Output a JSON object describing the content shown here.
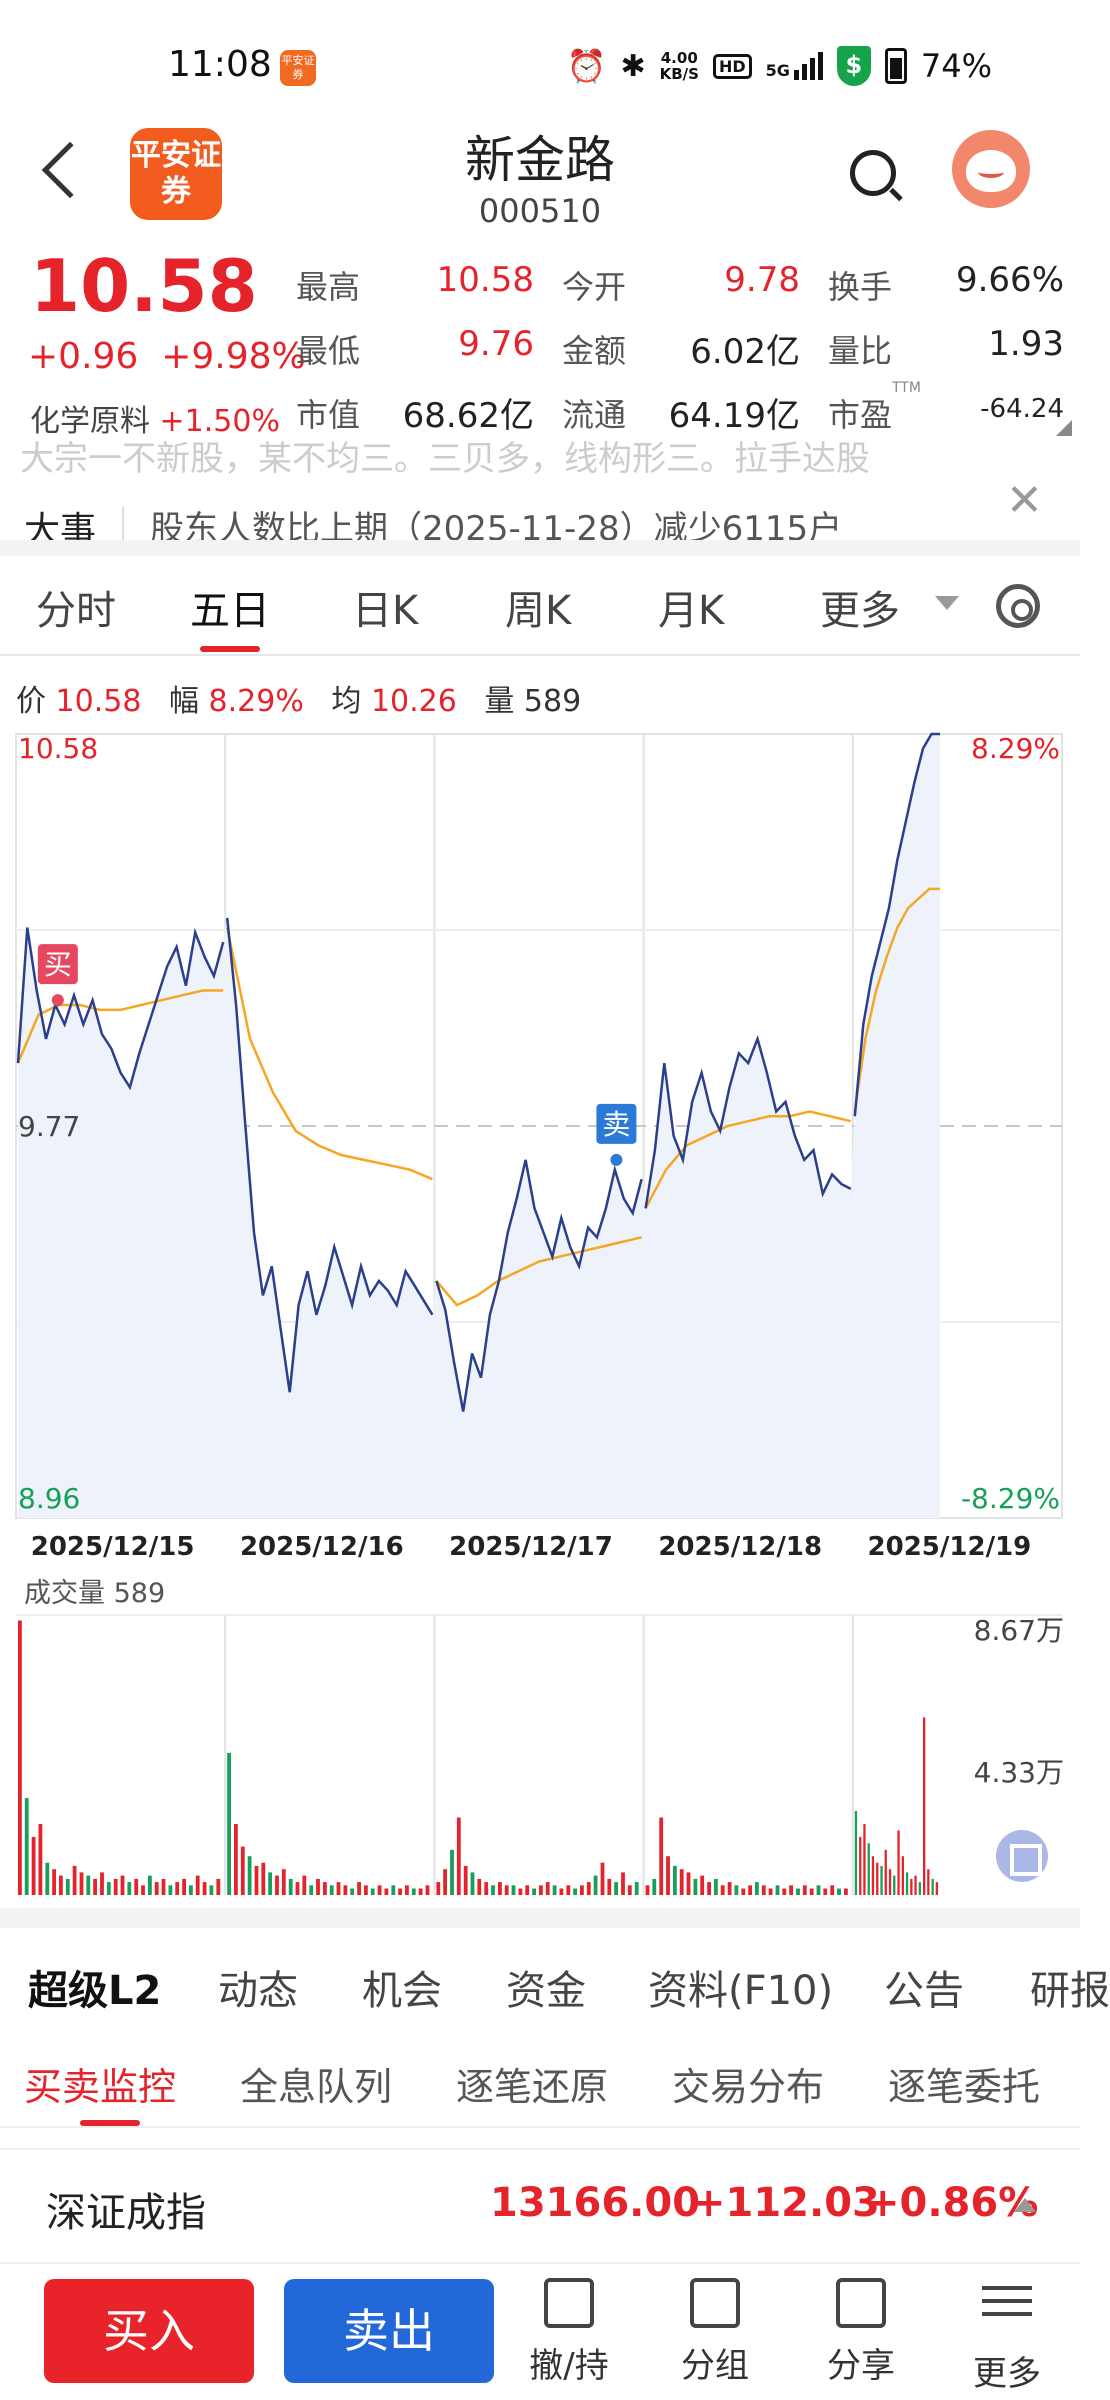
{
  "status_bar": {
    "time": "11:08",
    "app_badge": "平安证券",
    "net_speed_value": "4.00",
    "net_speed_unit": "KB/S",
    "hd": "HD",
    "network": "5G",
    "battery": "74%"
  },
  "header": {
    "logo_text": "平安证券",
    "stock_name": "新金路",
    "stock_code": "000510"
  },
  "quote": {
    "price": "10.58",
    "change": "+0.96",
    "change_pct": "+9.98%",
    "industry_name": "化学原料",
    "industry_pct": "+1.50%",
    "fields": [
      {
        "label": "最高",
        "value": "10.58",
        "color": "#e5232a"
      },
      {
        "label": "今开",
        "value": "9.78",
        "color": "#e5232a"
      },
      {
        "label": "换手",
        "value": "9.66%",
        "color": "#222222"
      },
      {
        "label": "最低",
        "value": "9.76",
        "color": "#e5232a"
      },
      {
        "label": "金额",
        "value": "6.02亿",
        "color": "#222222"
      },
      {
        "label": "量比",
        "value": "1.93",
        "color": "#222222"
      },
      {
        "label": "市值",
        "value": "68.62亿",
        "color": "#222222"
      },
      {
        "label": "流通",
        "value": "64.19亿",
        "color": "#222222"
      },
      {
        "label": "市盈",
        "value": "-64.24",
        "color": "#222222"
      }
    ],
    "pe_superscript": "TTM"
  },
  "news": {
    "faded_text": "大宗一不新股，某不均三。三贝多，线构形三。拉手达股",
    "tag": "大事",
    "text": "股东人数比上期（2025-11-28）减少6115户"
  },
  "period_tabs": [
    "分时",
    "五日",
    "日K",
    "周K",
    "月K",
    "更多"
  ],
  "active_period_tab": "五日",
  "info_bar": {
    "price_label": "价",
    "price": "10.58",
    "range_label": "幅",
    "range": "8.29%",
    "avg_label": "均",
    "avg": "10.26",
    "vol_label": "量",
    "vol": "589"
  },
  "chart_data": {
    "type": "line",
    "title": "",
    "y_top": "10.58",
    "y_mid": "9.77",
    "y_bottom": "8.96",
    "pct_top": "8.29%",
    "pct_bottom": "-8.29%",
    "ylim": [
      8.96,
      10.58
    ],
    "x": [
      "2025/12/15",
      "2025/12/16",
      "2025/12/17",
      "2025/12/18",
      "2025/12/19"
    ],
    "series": [
      {
        "name": "价",
        "color": "#2b3f8c",
        "days": [
          [
            9.9,
            10.18,
            10.05,
            9.95,
            10.02,
            9.98,
            10.04,
            9.98,
            10.03,
            9.96,
            9.93,
            9.88,
            9.85,
            9.92,
            9.98,
            10.04,
            10.1,
            10.14,
            10.06,
            10.17,
            10.12,
            10.08,
            10.15
          ],
          [
            10.2,
            10.02,
            9.78,
            9.55,
            9.42,
            9.48,
            9.35,
            9.22,
            9.4,
            9.47,
            9.38,
            9.44,
            9.52,
            9.46,
            9.4,
            9.48,
            9.42,
            9.45,
            9.43,
            9.4,
            9.47,
            9.44,
            9.41,
            9.38
          ],
          [
            9.45,
            9.39,
            9.28,
            9.18,
            9.3,
            9.25,
            9.38,
            9.45,
            9.55,
            9.62,
            9.7,
            9.6,
            9.55,
            9.5,
            9.58,
            9.52,
            9.48,
            9.56,
            9.54,
            9.6,
            9.68,
            9.62,
            9.59,
            9.66
          ],
          [
            9.6,
            9.72,
            9.9,
            9.75,
            9.7,
            9.82,
            9.88,
            9.8,
            9.76,
            9.85,
            9.92,
            9.9,
            9.95,
            9.88,
            9.8,
            9.82,
            9.75,
            9.7,
            9.72,
            9.63,
            9.67,
            9.65,
            9.64
          ],
          [
            9.79,
            9.98,
            10.08,
            10.15,
            10.22,
            10.32,
            10.4,
            10.48,
            10.55,
            10.58,
            10.58
          ]
        ]
      },
      {
        "name": "均",
        "color": "#f5a623",
        "days": [
          [
            9.9,
            10.0,
            10.02,
            10.02,
            10.01,
            10.01,
            10.02,
            10.03,
            10.04,
            10.05,
            10.05
          ],
          [
            10.18,
            9.95,
            9.84,
            9.76,
            9.73,
            9.71,
            9.7,
            9.69,
            9.68,
            9.66
          ],
          [
            9.45,
            9.4,
            9.42,
            9.45,
            9.47,
            9.49,
            9.5,
            9.51,
            9.52,
            9.53,
            9.54
          ],
          [
            9.6,
            9.68,
            9.73,
            9.75,
            9.77,
            9.78,
            9.79,
            9.79,
            9.8,
            9.79,
            9.78
          ],
          [
            9.8,
            9.95,
            10.05,
            10.12,
            10.18,
            10.22,
            10.24,
            10.26,
            10.26
          ]
        ]
      }
    ],
    "trade_markers": [
      {
        "label": "买",
        "day": 0,
        "pos": 0.2,
        "price": 10.03,
        "color": "#e5485f"
      },
      {
        "label": "卖",
        "day": 2,
        "pos": 0.87,
        "price": 9.7,
        "color": "#2b7bd6"
      }
    ],
    "volume": {
      "title": "成交量",
      "value": "589",
      "max_label": "8.67万",
      "mid_label": "4.33万",
      "ylim": [
        0,
        8.67
      ],
      "unit": "万",
      "days": [
        [
          8.5,
          3.0,
          1.8,
          2.2,
          1.0,
          0.8,
          0.6,
          0.5,
          0.9,
          0.7,
          0.6,
          0.5,
          0.7,
          0.4,
          0.5,
          0.6,
          0.4,
          0.5,
          0.3,
          0.6,
          0.4,
          0.5,
          0.3,
          0.4,
          0.5,
          0.3,
          0.6,
          0.4,
          0.3,
          0.5
        ],
        [
          4.4,
          2.2,
          1.5,
          1.2,
          0.9,
          1.0,
          0.7,
          0.6,
          0.8,
          0.5,
          0.4,
          0.6,
          0.3,
          0.5,
          0.4,
          0.3,
          0.4,
          0.3,
          0.2,
          0.4,
          0.3,
          0.2,
          0.3,
          0.2,
          0.3,
          0.2,
          0.3,
          0.2,
          0.2,
          0.3
        ],
        [
          0.4,
          0.8,
          1.4,
          2.4,
          0.9,
          0.7,
          0.5,
          0.4,
          0.3,
          0.4,
          0.3,
          0.3,
          0.2,
          0.3,
          0.2,
          0.3,
          0.4,
          0.3,
          0.2,
          0.3,
          0.2,
          0.3,
          0.4,
          0.6,
          1.0,
          0.5,
          0.4,
          0.7,
          0.3,
          0.4
        ],
        [
          0.3,
          0.5,
          2.4,
          1.2,
          0.9,
          0.8,
          0.7,
          0.5,
          0.6,
          0.4,
          0.5,
          0.3,
          0.4,
          0.3,
          0.2,
          0.3,
          0.4,
          0.3,
          0.2,
          0.3,
          0.2,
          0.3,
          0.2,
          0.3,
          0.2,
          0.3,
          0.2,
          0.3,
          0.2,
          0.2
        ],
        [
          2.6,
          1.8,
          2.2,
          1.6,
          1.2,
          1.0,
          0.9,
          1.4,
          0.8,
          0.6,
          2.0,
          1.2,
          0.7,
          0.5,
          0.6,
          0.4,
          5.5,
          0.8,
          0.5,
          0.4
        ]
      ],
      "up_color": "#e5232a",
      "down_color": "#16a05a"
    }
  },
  "section_tabs": [
    "超级L2",
    "动态",
    "机会",
    "资金",
    "资料(F10)",
    "公告",
    "研报"
  ],
  "active_section_tab": "超级L2",
  "sub_tabs": [
    "买卖监控",
    "全息队列",
    "逐笔还原",
    "交易分布",
    "逐笔委托"
  ],
  "active_sub_tab": "买卖监控",
  "index_ticker": {
    "name": "深证成指",
    "value": "13166.00",
    "change": "+112.03",
    "pct": "+0.86%"
  },
  "toolbar": {
    "buy": "买入",
    "sell": "卖出",
    "tools": [
      {
        "label": "撤/持",
        "icon": "cancel-hold-icon"
      },
      {
        "label": "分组",
        "icon": "group-icon"
      },
      {
        "label": "分享",
        "icon": "share-icon"
      },
      {
        "label": "更多",
        "icon": "more-menu-icon"
      }
    ]
  },
  "colors": {
    "up": "#e5232a",
    "down": "#16a05a",
    "buy_button": "#e8232a",
    "sell_button": "#2368d8",
    "brand": "#f25c1e"
  }
}
